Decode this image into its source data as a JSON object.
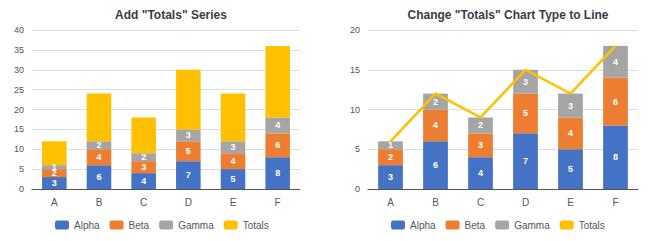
{
  "chart_data": [
    {
      "type": "bar",
      "title": "Add \"Totals\" Series",
      "categories": [
        "A",
        "B",
        "C",
        "D",
        "E",
        "F"
      ],
      "series": [
        {
          "name": "Alpha",
          "color": "#4472C4",
          "values": [
            3,
            6,
            4,
            7,
            5,
            8
          ],
          "data_labels": true
        },
        {
          "name": "Beta",
          "color": "#ED7D31",
          "values": [
            2,
            4,
            3,
            5,
            4,
            6
          ],
          "data_labels": true
        },
        {
          "name": "Gamma",
          "color": "#A5A5A5",
          "values": [
            1,
            2,
            2,
            3,
            3,
            4
          ],
          "data_labels": true
        },
        {
          "name": "Totals",
          "color": "#FFC000",
          "values": [
            6,
            12,
            9,
            15,
            12,
            18
          ],
          "data_labels": false
        }
      ],
      "stacked": true,
      "ylim": [
        0,
        40
      ],
      "yticks": [
        0,
        5,
        10,
        15,
        20,
        25,
        30,
        35,
        40
      ],
      "grid": true,
      "legend": "bottom"
    },
    {
      "type": "bar",
      "title": "Change \"Totals\" Chart Type to Line",
      "categories": [
        "A",
        "B",
        "C",
        "D",
        "E",
        "F"
      ],
      "series": [
        {
          "name": "Alpha",
          "color": "#4472C4",
          "values": [
            3,
            6,
            4,
            7,
            5,
            8
          ],
          "data_labels": true
        },
        {
          "name": "Beta",
          "color": "#ED7D31",
          "values": [
            2,
            4,
            3,
            5,
            4,
            6
          ],
          "data_labels": true
        },
        {
          "name": "Gamma",
          "color": "#A5A5A5",
          "values": [
            1,
            2,
            2,
            3,
            3,
            4
          ],
          "data_labels": true
        },
        {
          "name": "Totals",
          "type": "line",
          "color": "#FFC000",
          "values": [
            6,
            12,
            9,
            15,
            12,
            18
          ],
          "data_labels": false
        }
      ],
      "stacked": true,
      "ylim": [
        0,
        20
      ],
      "yticks": [
        0,
        5,
        10,
        15,
        20
      ],
      "grid": true,
      "legend": "bottom"
    }
  ]
}
